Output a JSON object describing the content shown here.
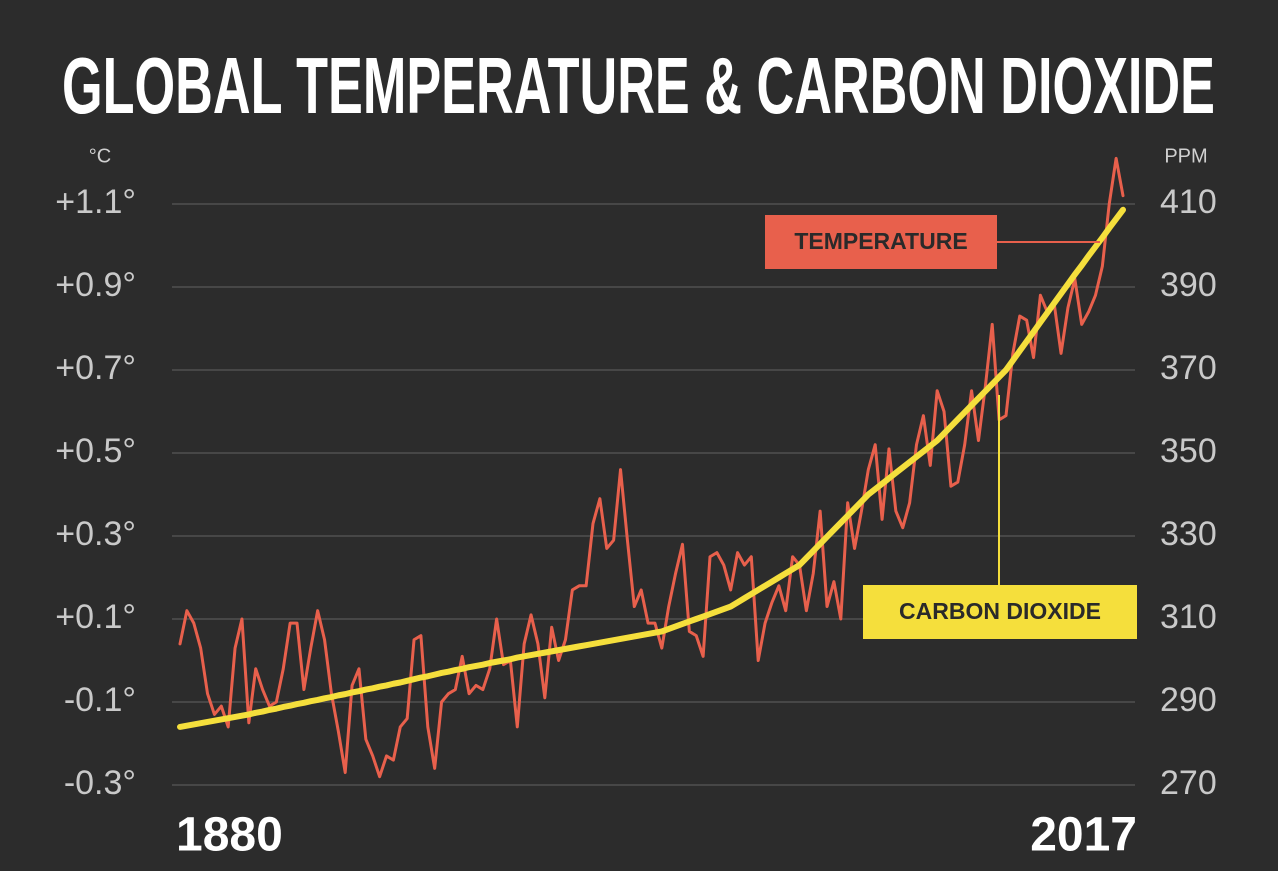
{
  "chart_data": {
    "type": "line",
    "title": "GLOBAL TEMPERATURE & CARBON DIOXIDE",
    "ylabel": "°C",
    "y2label": "PPM",
    "x": [
      1880,
      1881,
      1882,
      1883,
      1884,
      1885,
      1886,
      1887,
      1888,
      1889,
      1890,
      1891,
      1892,
      1893,
      1894,
      1895,
      1896,
      1897,
      1898,
      1899,
      1900,
      1901,
      1902,
      1903,
      1904,
      1905,
      1906,
      1907,
      1908,
      1909,
      1910,
      1911,
      1912,
      1913,
      1914,
      1915,
      1916,
      1917,
      1918,
      1919,
      1920,
      1921,
      1922,
      1923,
      1924,
      1925,
      1926,
      1927,
      1928,
      1929,
      1930,
      1931,
      1932,
      1933,
      1934,
      1935,
      1936,
      1937,
      1938,
      1939,
      1940,
      1941,
      1942,
      1943,
      1944,
      1945,
      1946,
      1947,
      1948,
      1949,
      1950,
      1951,
      1952,
      1953,
      1954,
      1955,
      1956,
      1957,
      1958,
      1959,
      1960,
      1961,
      1962,
      1963,
      1964,
      1965,
      1966,
      1967,
      1968,
      1969,
      1970,
      1971,
      1972,
      1973,
      1974,
      1975,
      1976,
      1977,
      1978,
      1979,
      1980,
      1981,
      1982,
      1983,
      1984,
      1985,
      1986,
      1987,
      1988,
      1989,
      1990,
      1991,
      1992,
      1993,
      1994,
      1995,
      1996,
      1997,
      1998,
      1999,
      2000,
      2001,
      2002,
      2003,
      2004,
      2005,
      2006,
      2007,
      2008,
      2009,
      2010,
      2011,
      2012,
      2013,
      2014,
      2015,
      2016,
      2017
    ],
    "xlim": [
      1880,
      2017
    ],
    "xticks": [
      1880,
      2017
    ],
    "ylim": [
      -0.3,
      1.1
    ],
    "yticks": [
      {
        "value": -0.3,
        "label": "-0.3°"
      },
      {
        "value": -0.1,
        "label": "-0.1°"
      },
      {
        "value": 0.1,
        "label": "+0.1°"
      },
      {
        "value": 0.3,
        "label": "+0.3°"
      },
      {
        "value": 0.5,
        "label": "+0.5°"
      },
      {
        "value": 0.7,
        "label": "+0.7°"
      },
      {
        "value": 0.9,
        "label": "+0.9°"
      },
      {
        "value": 1.1,
        "label": "+1.1°"
      }
    ],
    "y2lim": [
      270,
      410
    ],
    "y2ticks": [
      270,
      290,
      310,
      330,
      350,
      370,
      390,
      410
    ],
    "grid": true,
    "series": [
      {
        "name": "TEMPERATURE",
        "color": "#e8604c",
        "values": [
          0.04,
          0.12,
          0.09,
          0.03,
          -0.08,
          -0.13,
          -0.11,
          -0.16,
          0.03,
          0.1,
          -0.15,
          -0.02,
          -0.07,
          -0.11,
          -0.1,
          -0.02,
          0.09,
          0.09,
          -0.07,
          0.03,
          0.12,
          0.05,
          -0.08,
          -0.17,
          -0.27,
          -0.06,
          -0.02,
          -0.19,
          -0.23,
          -0.28,
          -0.23,
          -0.24,
          -0.16,
          -0.14,
          0.05,
          0.06,
          -0.16,
          -0.26,
          -0.1,
          -0.08,
          -0.07,
          0.01,
          -0.08,
          -0.06,
          -0.07,
          -0.02,
          0.1,
          -0.01,
          0,
          -0.16,
          0.04,
          0.11,
          0.04,
          -0.09,
          0.08,
          0,
          0.05,
          0.17,
          0.18,
          0.18,
          0.33,
          0.39,
          0.27,
          0.29,
          0.46,
          0.29,
          0.13,
          0.17,
          0.09,
          0.09,
          0.03,
          0.13,
          0.21,
          0.28,
          0.07,
          0.06,
          0.01,
          0.25,
          0.26,
          0.23,
          0.17,
          0.26,
          0.23,
          0.25,
          0,
          0.09,
          0.14,
          0.18,
          0.12,
          0.25,
          0.23,
          0.12,
          0.21,
          0.36,
          0.13,
          0.19,
          0.1,
          0.38,
          0.27,
          0.36,
          0.46,
          0.52,
          0.34,
          0.51,
          0.36,
          0.32,
          0.38,
          0.52,
          0.59,
          0.47,
          0.65,
          0.6,
          0.42,
          0.43,
          0.52,
          0.65,
          0.53,
          0.66,
          0.81,
          0.58,
          0.59,
          0.74,
          0.83,
          0.82,
          0.73,
          0.88,
          0.84,
          0.86,
          0.74,
          0.85,
          0.92,
          0.81,
          0.84,
          0.88,
          0.95,
          1.1,
          1.21,
          1.12
        ]
      },
      {
        "name": "CARBON DIOXIDE",
        "color": "#f5df3c",
        "axis": "y2",
        "values": [
          284.0,
          284.3,
          284.6,
          284.9,
          285.2,
          285.5,
          285.8,
          286.1,
          286.4,
          286.7,
          287.0,
          287.4,
          287.7,
          288.1,
          288.4,
          288.8,
          289.1,
          289.5,
          289.8,
          290.2,
          290.5,
          290.9,
          291.2,
          291.6,
          291.9,
          292.3,
          292.6,
          293.0,
          293.3,
          293.7,
          294.0,
          294.4,
          294.7,
          295.1,
          295.5,
          295.9,
          296.2,
          296.6,
          297.0,
          297.3,
          297.7,
          298.0,
          298.4,
          298.7,
          299.0,
          299.4,
          299.7,
          300.0,
          300.3,
          300.7,
          301.0,
          301.3,
          301.6,
          301.9,
          302.2,
          302.5,
          302.8,
          303.1,
          303.4,
          303.7,
          304.0,
          304.3,
          304.6,
          304.9,
          305.2,
          305.5,
          305.8,
          306.1,
          306.4,
          306.7,
          307.0,
          307.6,
          308.2,
          308.8,
          309.4,
          310.0,
          310.6,
          311.2,
          311.8,
          312.4,
          313.0,
          314.0,
          315.0,
          316.0,
          317.0,
          318.0,
          319.0,
          320.0,
          321.0,
          322.0,
          323.0,
          324.7,
          326.4,
          328.1,
          329.8,
          331.5,
          333.2,
          334.9,
          336.6,
          338.3,
          340.0,
          341.3,
          342.6,
          343.9,
          345.2,
          346.5,
          347.8,
          349.1,
          350.4,
          351.7,
          353.0,
          354.7,
          356.4,
          358.1,
          359.8,
          361.5,
          363.2,
          364.9,
          366.6,
          368.3,
          370.0,
          372.3,
          374.6,
          376.9,
          379.2,
          381.5,
          383.8,
          386.1,
          388.4,
          390.7,
          393.0,
          395.2,
          397.5,
          399.7,
          401.9,
          404.2,
          406.4,
          408.6
        ]
      }
    ]
  }
}
